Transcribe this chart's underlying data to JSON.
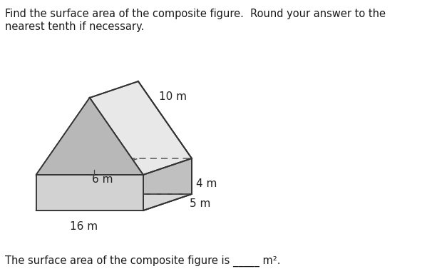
{
  "title_line1": "Find the surface area of the composite figure.  Round your answer to the",
  "title_line2": "nearest tenth if necessary.",
  "bottom_text": "The surface area of the composite figure is _____ m².",
  "label_10m": "10 m",
  "label_4m": "4 m",
  "label_5m": "5 m",
  "label_6m": "6 m",
  "label_16m": "16 m",
  "bg_color": "#ffffff",
  "edge_color": "#333333",
  "dashed_color": "#555555",
  "face_front_box": "#d2d2d2",
  "face_right_box": "#c0c0c0",
  "face_bottom_box": "#e0e0e0",
  "face_left_tri": "#b8b8b8",
  "face_right_slant": "#e8e8e8",
  "face_back_tri": "#d8d8d8",
  "face_top_box": "#e4e4e4"
}
